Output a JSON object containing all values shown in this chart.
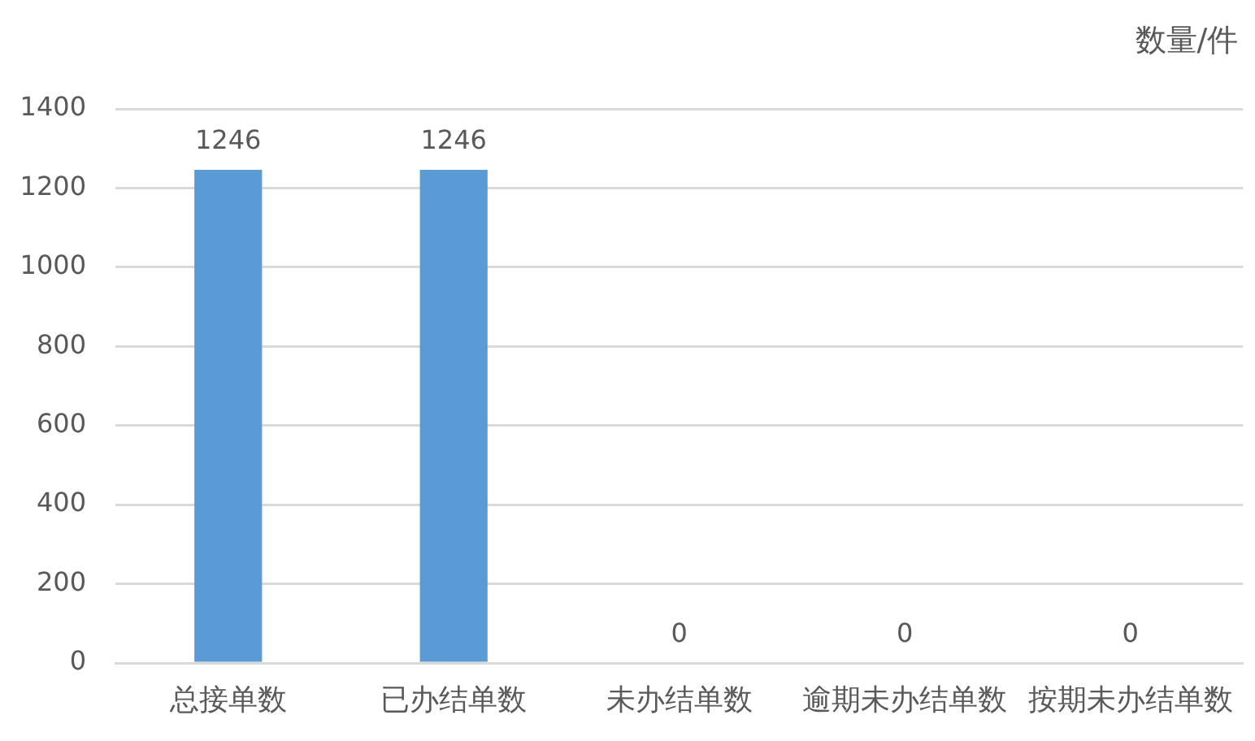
{
  "chart_data": {
    "type": "bar",
    "ylabel": "数量/件",
    "categories": [
      "总接单数",
      "已办结单数",
      "未办结单数",
      "逾期未办结单数",
      "按期未办结单数"
    ],
    "values": [
      1246,
      1246,
      0,
      0,
      0
    ],
    "color": "#5b9bd5",
    "ylim": [
      0,
      1400
    ],
    "yticks": [
      0,
      200,
      400,
      600,
      800,
      1000,
      1200,
      1400
    ],
    "grid": "y",
    "data_labels": true
  }
}
